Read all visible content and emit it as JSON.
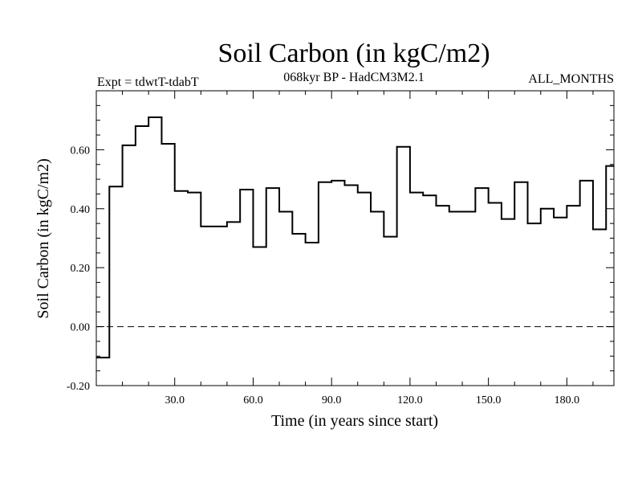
{
  "chart_data": {
    "type": "line",
    "style": "step",
    "title": "Soil Carbon (in kgC/m2)",
    "subtitle": "068kyr BP - HadCM3M2.1",
    "left_label": "Expt = tdwtT-tdabT",
    "right_label": "ALL_MONTHS",
    "xlabel": "Time (in years since start)",
    "ylabel": "Soil Carbon (in kgC/m2)",
    "xlim": [
      0,
      198
    ],
    "ylim": [
      -0.2,
      0.8
    ],
    "xticks": [
      30,
      60,
      90,
      120,
      150,
      180
    ],
    "xtick_labels": [
      "30.0",
      "60.0",
      "90.0",
      "120.0",
      "150.0",
      "180.0"
    ],
    "yticks": [
      -0.2,
      0.0,
      0.2,
      0.4,
      0.6
    ],
    "ytick_labels": [
      "-0.20",
      "0.00",
      "0.20",
      "0.40",
      "0.60"
    ],
    "reference_line": {
      "y": 0.0,
      "style": "dashed"
    },
    "series": [
      {
        "name": "Soil Carbon",
        "x": [
          0,
          5,
          10,
          15,
          20,
          25,
          30,
          35,
          40,
          45,
          50,
          55,
          60,
          65,
          70,
          75,
          80,
          85,
          90,
          95,
          100,
          105,
          110,
          115,
          120,
          125,
          130,
          135,
          140,
          145,
          150,
          155,
          160,
          165,
          170,
          175,
          180,
          185,
          190,
          195
        ],
        "values": [
          -0.105,
          0.475,
          0.615,
          0.68,
          0.71,
          0.62,
          0.46,
          0.455,
          0.34,
          0.34,
          0.355,
          0.465,
          0.27,
          0.47,
          0.39,
          0.315,
          0.285,
          0.49,
          0.495,
          0.48,
          0.455,
          0.39,
          0.305,
          0.61,
          0.455,
          0.445,
          0.41,
          0.39,
          0.39,
          0.47,
          0.42,
          0.365,
          0.49,
          0.35,
          0.4,
          0.37,
          0.41,
          0.495,
          0.33,
          0.545
        ]
      }
    ]
  }
}
